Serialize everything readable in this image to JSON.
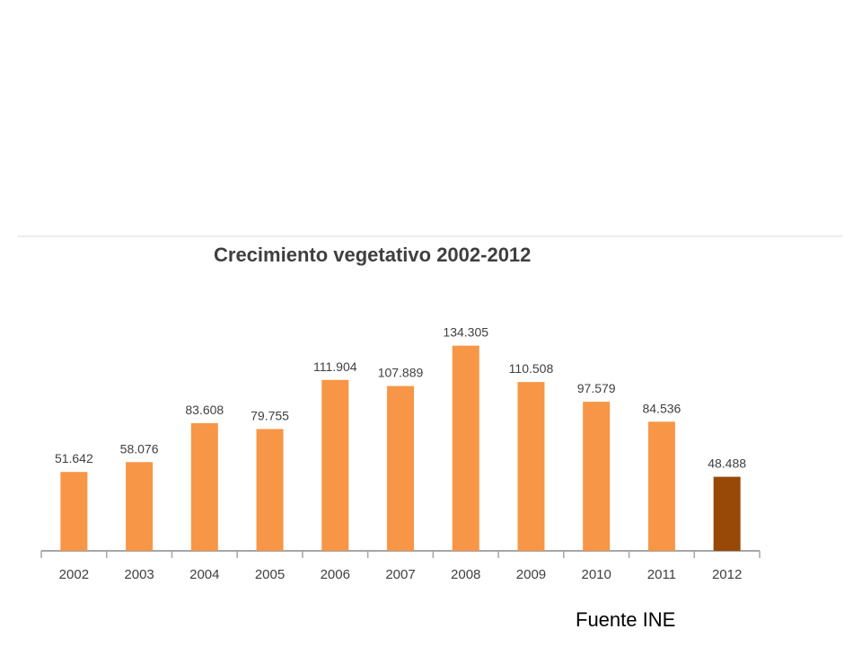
{
  "chart_data": {
    "type": "bar",
    "title": "Crecimiento vegetativo 2002-2012",
    "categories": [
      "2002",
      "2003",
      "2004",
      "2005",
      "2006",
      "2007",
      "2008",
      "2009",
      "2010",
      "2011",
      "2012"
    ],
    "values": [
      51642,
      58076,
      83608,
      79755,
      111904,
      107889,
      134305,
      110508,
      97579,
      84536,
      48488
    ],
    "value_labels": [
      "51.642",
      "58.076",
      "83.608",
      "79.755",
      "111.904",
      "107.889",
      "134.305",
      "110.508",
      "97.579",
      "84.536",
      "48.488"
    ],
    "xlabel": "",
    "ylabel": "",
    "ylim": [
      0,
      140000
    ],
    "grid": false,
    "legend": "none",
    "colors": {
      "bar": "#F79646",
      "highlight": "#984807",
      "axis": "#a6a6a6",
      "label_text": "#404040"
    },
    "highlight_category": "2012"
  },
  "footer": {
    "source": "Fuente INE"
  }
}
